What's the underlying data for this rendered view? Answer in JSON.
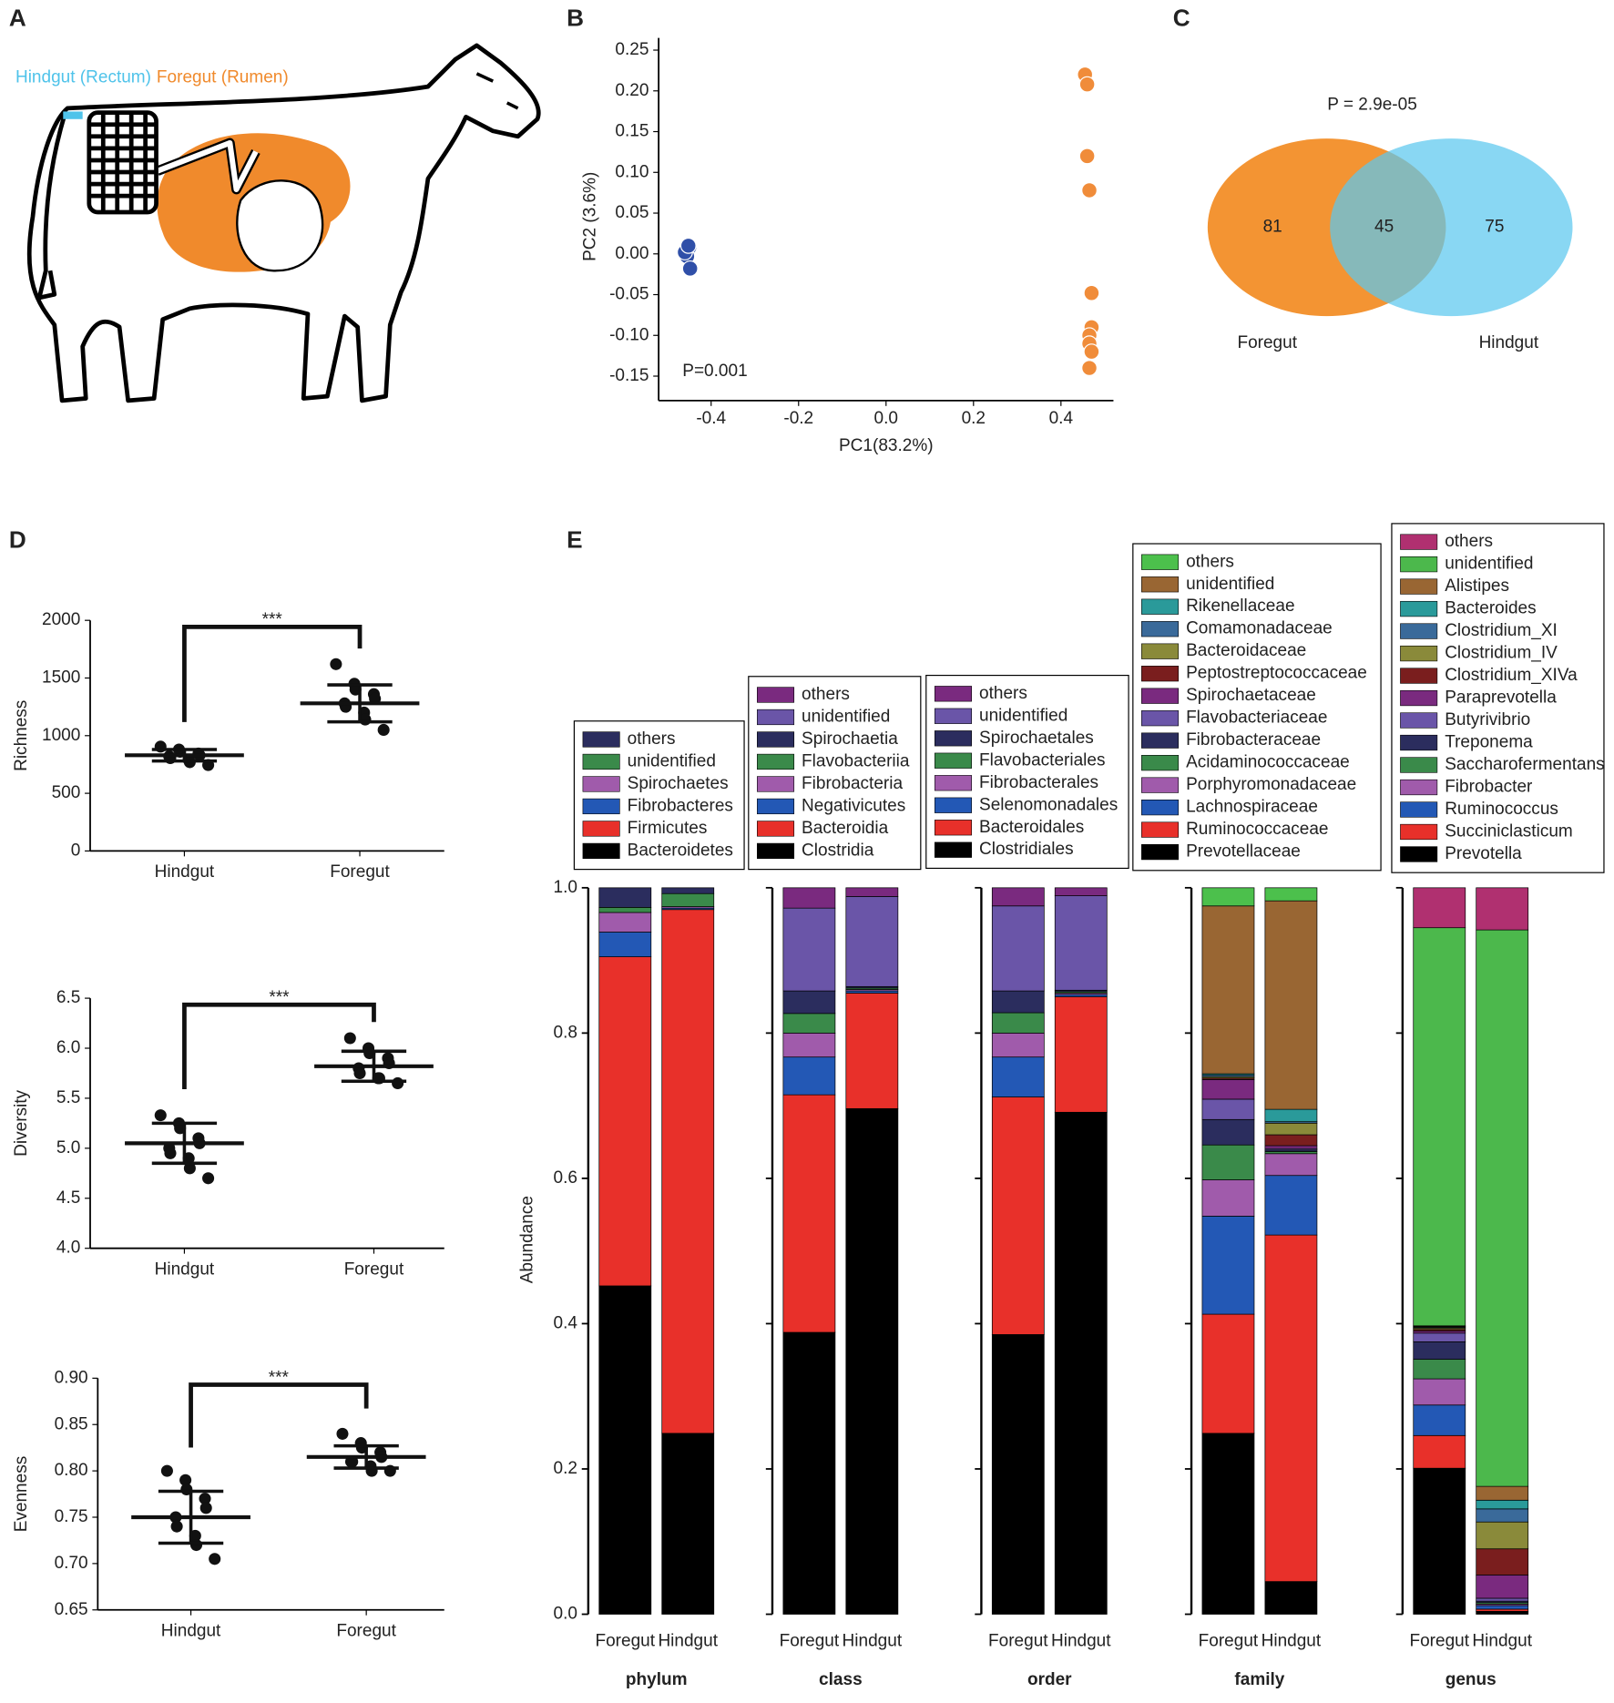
{
  "chart_data": [
    {
      "type": "illustration",
      "panel": "A",
      "labels": [
        "Hindgut (Rectum)",
        "Foregut (Rumen)"
      ],
      "label_colors": [
        "#4fc3ea",
        "#f08a2c"
      ]
    },
    {
      "type": "scatter",
      "panel": "B",
      "xlabel": "PC1(83.2%)",
      "ylabel": "PC2 (3.6%)",
      "annotation": "P=0.001",
      "xlim": [
        -0.52,
        0.52
      ],
      "ylim": [
        -0.18,
        0.265
      ],
      "xticks": [
        -0.4,
        -0.2,
        {
          "value": 0,
          "label": "0.0"
        },
        0.2,
        0.4
      ],
      "yticks": [
        0.25,
        {
          "value": 0.2,
          "label": "0.20"
        },
        0.15,
        {
          "value": 0.1,
          "label": "0.10"
        },
        0.05,
        {
          "value": 0,
          "label": "0.00"
        },
        -0.05,
        {
          "value": -0.1,
          "label": "-0.10"
        },
        -0.15
      ],
      "series": [
        {
          "color": "#2f4fa8",
          "x": [
            -0.45,
            -0.455,
            -0.46,
            -0.448,
            -0.452
          ],
          "y": [
            0.008,
            -0.003,
            0.002,
            -0.018,
            0.01
          ]
        },
        {
          "color": "#f08c3a",
          "x": [
            0.455,
            0.46,
            0.46,
            0.465,
            0.47,
            0.47,
            0.465,
            0.465,
            0.47,
            0.465
          ],
          "y": [
            0.22,
            0.208,
            0.12,
            0.078,
            -0.048,
            -0.09,
            -0.1,
            -0.11,
            -0.12,
            -0.14
          ]
        }
      ]
    },
    {
      "type": "venn",
      "panel": "C",
      "title": "P = 2.9e-05",
      "overlap": 45,
      "sets": [
        {
          "name": "Foregut",
          "value": 81,
          "color": "#f39433"
        },
        {
          "name": "Hindgut",
          "value": 75,
          "color": "#5bc8ee"
        }
      ]
    },
    {
      "type": "dotplot",
      "panel": "D",
      "ylabel": "Richness",
      "annotation": "***",
      "categories": [
        "Hindgut",
        "Foregut"
      ],
      "ylim": [
        0,
        2000
      ],
      "yticks": [
        0,
        500,
        1000,
        1500,
        2000
      ],
      "values": [
        830,
        1280
      ],
      "errors": [
        50,
        160
      ],
      "points": [
        [
          905,
          880,
          860,
          845,
          830,
          820,
          805,
          790,
          770,
          745
        ],
        [
          1620,
          1450,
          1400,
          1360,
          1320,
          1280,
          1250,
          1200,
          1140,
          1050
        ]
      ]
    },
    {
      "type": "dotplot",
      "ylabel": "Diversity",
      "annotation": "***",
      "categories": [
        "Hindgut",
        "Foregut"
      ],
      "ylim": [
        4.0,
        6.5
      ],
      "yticks": [
        {
          "value": 4,
          "label": "4.0"
        },
        4.5,
        {
          "value": 5,
          "label": "5.0"
        },
        5.5,
        {
          "value": 6,
          "label": "6.0"
        },
        6.5
      ],
      "values": [
        5.05,
        5.82
      ],
      "errors": [
        0.2,
        0.15
      ],
      "points": [
        [
          5.33,
          5.25,
          5.2,
          5.1,
          5.05,
          5.0,
          4.95,
          4.9,
          4.8,
          4.7
        ],
        [
          6.1,
          6.0,
          5.95,
          5.9,
          5.85,
          5.8,
          5.75,
          5.7,
          5.7,
          5.65
        ]
      ]
    },
    {
      "type": "dotplot",
      "ylabel": "Evenness",
      "annotation": "***",
      "categories": [
        "Hindgut",
        "Foregut"
      ],
      "ylim": [
        0.65,
        0.9
      ],
      "yticks": [
        0.65,
        {
          "value": 0.7,
          "label": "0.70"
        },
        0.75,
        {
          "value": 0.8,
          "label": "0.80"
        },
        0.85,
        {
          "value": 0.9,
          "label": "0.90"
        }
      ],
      "values": [
        0.75,
        0.815
      ],
      "errors": [
        0.028,
        0.012
      ],
      "points": [
        [
          0.8,
          0.79,
          0.78,
          0.77,
          0.76,
          0.75,
          0.74,
          0.73,
          0.72,
          0.705
        ],
        [
          0.84,
          0.83,
          0.825,
          0.82,
          0.815,
          0.81,
          0.81,
          0.805,
          0.8,
          0.8
        ]
      ]
    },
    {
      "type": "stacked_bar",
      "panel": "E",
      "ylabel": "Abundance",
      "xlabel": "phylum",
      "categories": [
        "Foregut",
        "Hindgut"
      ],
      "ylim": [
        0,
        1
      ],
      "yticks": [
        {
          "value": 0,
          "label": "0.0"
        },
        0.2,
        0.4,
        0.6,
        0.8,
        {
          "value": 1,
          "label": "1.0"
        }
      ],
      "series": [
        {
          "name": "Bacteroidetes",
          "color": "#000000",
          "values": [
            0.452,
            0.249
          ]
        },
        {
          "name": "Firmicutes",
          "color": "#e8302a",
          "values": [
            0.453,
            0.721
          ]
        },
        {
          "name": "Fibrobacteres",
          "color": "#2358b5",
          "values": [
            0.034,
            0.002
          ]
        },
        {
          "name": "Spirochaetes",
          "color": "#a05bab",
          "values": [
            0.027,
            0.002
          ]
        },
        {
          "name": "unidentified",
          "color": "#3a8a4a",
          "values": [
            0.007,
            0.018
          ]
        },
        {
          "name": "others",
          "color": "#2b2d5e",
          "values": [
            0.027,
            0.008
          ]
        }
      ]
    },
    {
      "type": "stacked_bar",
      "xlabel": "class",
      "categories": [
        "Foregut",
        "Hindgut"
      ],
      "ylim": [
        0,
        1
      ],
      "series": [
        {
          "name": "Clostridia",
          "color": "#000000",
          "values": [
            0.388,
            0.696
          ]
        },
        {
          "name": "Bacteroidia",
          "color": "#e8302a",
          "values": [
            0.327,
            0.159
          ]
        },
        {
          "name": "Negativicutes",
          "color": "#2358b5",
          "values": [
            0.052,
            0.003
          ]
        },
        {
          "name": "Fibrobacteria",
          "color": "#a05bab",
          "values": [
            0.033,
            0.002
          ]
        },
        {
          "name": "Flavobacteriia",
          "color": "#3a8a4a",
          "values": [
            0.027,
            0.002
          ]
        },
        {
          "name": "Spirochaetia",
          "color": "#2b2d5e",
          "values": [
            0.031,
            0.002
          ]
        },
        {
          "name": "unidentified",
          "color": "#6a55a8",
          "values": [
            0.114,
            0.124
          ]
        },
        {
          "name": "others",
          "color": "#7a2a7f",
          "values": [
            0.028,
            0.012
          ]
        }
      ]
    },
    {
      "type": "stacked_bar",
      "xlabel": "order",
      "categories": [
        "Foregut",
        "Hindgut"
      ],
      "ylim": [
        0,
        1
      ],
      "series": [
        {
          "name": "Clostridiales",
          "color": "#000000",
          "values": [
            0.385,
            0.691
          ]
        },
        {
          "name": "Bacteroidales",
          "color": "#e8302a",
          "values": [
            0.327,
            0.159
          ]
        },
        {
          "name": "Selenomonadales",
          "color": "#2358b5",
          "values": [
            0.055,
            0.003
          ]
        },
        {
          "name": "Fibrobacterales",
          "color": "#a05bab",
          "values": [
            0.033,
            0.002
          ]
        },
        {
          "name": "Flavobacteriales",
          "color": "#3a8a4a",
          "values": [
            0.028,
            0.002
          ]
        },
        {
          "name": "Spirochaetales",
          "color": "#2b2d5e",
          "values": [
            0.03,
            0.002
          ]
        },
        {
          "name": "unidentified",
          "color": "#6a55a8",
          "values": [
            0.117,
            0.13
          ]
        },
        {
          "name": "others",
          "color": "#7a2a7f",
          "values": [
            0.025,
            0.011
          ]
        }
      ]
    },
    {
      "type": "stacked_bar",
      "xlabel": "family",
      "categories": [
        "Foregut",
        "Hindgut"
      ],
      "ylim": [
        0,
        1
      ],
      "series": [
        {
          "name": "Prevotellaceae",
          "color": "#000000",
          "values": [
            0.249,
            0.045
          ]
        },
        {
          "name": "Ruminococcaceae",
          "color": "#e8302a",
          "values": [
            0.164,
            0.477
          ]
        },
        {
          "name": "Lachnospiraceae",
          "color": "#2358b5",
          "values": [
            0.135,
            0.082
          ]
        },
        {
          "name": "Porphyromonadaceae",
          "color": "#a05bab",
          "values": [
            0.05,
            0.03
          ]
        },
        {
          "name": "Acidaminococcaceae",
          "color": "#3a8a4a",
          "values": [
            0.048,
            0.003
          ]
        },
        {
          "name": "Fibrobacteraceae",
          "color": "#2b2d5e",
          "values": [
            0.035,
            0.002
          ]
        },
        {
          "name": "Flavobacteriaceae",
          "color": "#6a55a8",
          "values": [
            0.028,
            0.002
          ]
        },
        {
          "name": "Spirochaetaceae",
          "color": "#7a2a7f",
          "values": [
            0.027,
            0.004
          ]
        },
        {
          "name": "Peptostreptococcaceae",
          "color": "#7a1e1e",
          "values": [
            0.002,
            0.015
          ]
        },
        {
          "name": "Bacteroidaceae",
          "color": "#8a8a3a",
          "values": [
            0.002,
            0.016
          ]
        },
        {
          "name": "Comamonadaceae",
          "color": "#3a6a9a",
          "values": [
            0.002,
            0.002
          ]
        },
        {
          "name": "Rikenellaceae",
          "color": "#2a9a9a",
          "values": [
            0.002,
            0.017
          ]
        },
        {
          "name": "unidentified",
          "color": "#996633",
          "values": [
            0.231,
            0.287
          ]
        },
        {
          "name": "others",
          "color": "#4cc04c",
          "values": [
            0.025,
            0.018
          ]
        }
      ]
    },
    {
      "type": "stacked_bar",
      "xlabel": "genus",
      "categories": [
        "Foregut",
        "Hindgut"
      ],
      "ylim": [
        0,
        1
      ],
      "series": [
        {
          "name": "Prevotella",
          "color": "#000000",
          "values": [
            0.201,
            0.004
          ]
        },
        {
          "name": "Succiniclasticum",
          "color": "#e8302a",
          "values": [
            0.045,
            0.003
          ]
        },
        {
          "name": "Ruminococcus",
          "color": "#2358b5",
          "values": [
            0.042,
            0.005
          ]
        },
        {
          "name": "Fibrobacter",
          "color": "#a05bab",
          "values": [
            0.036,
            0.002
          ]
        },
        {
          "name": "Saccharofermentans",
          "color": "#3a8a4a",
          "values": [
            0.027,
            0.002
          ]
        },
        {
          "name": "Treponema",
          "color": "#2b2d5e",
          "values": [
            0.024,
            0.002
          ]
        },
        {
          "name": "Butyrivibrio",
          "color": "#6a55a8",
          "values": [
            0.012,
            0.004
          ]
        },
        {
          "name": "Paraprevotella",
          "color": "#7a2a7f",
          "values": [
            0.003,
            0.032
          ]
        },
        {
          "name": "Clostridium_XIVa",
          "color": "#7a1e1e",
          "values": [
            0.002,
            0.036
          ]
        },
        {
          "name": "Clostridium_IV",
          "color": "#8a8a3a",
          "values": [
            0.002,
            0.037
          ]
        },
        {
          "name": "Clostridium_XI",
          "color": "#3a6a9a",
          "values": [
            0.001,
            0.018
          ]
        },
        {
          "name": "Bacteroides",
          "color": "#2a9a9a",
          "values": [
            0.001,
            0.012
          ]
        },
        {
          "name": "Alistipes",
          "color": "#996633",
          "values": [
            0.001,
            0.019
          ]
        },
        {
          "name": "unidentified",
          "color": "#4cb84c",
          "values": [
            0.548,
            0.766
          ]
        },
        {
          "name": "others",
          "color": "#b03070",
          "values": [
            0.055,
            0.058
          ]
        }
      ]
    }
  ]
}
